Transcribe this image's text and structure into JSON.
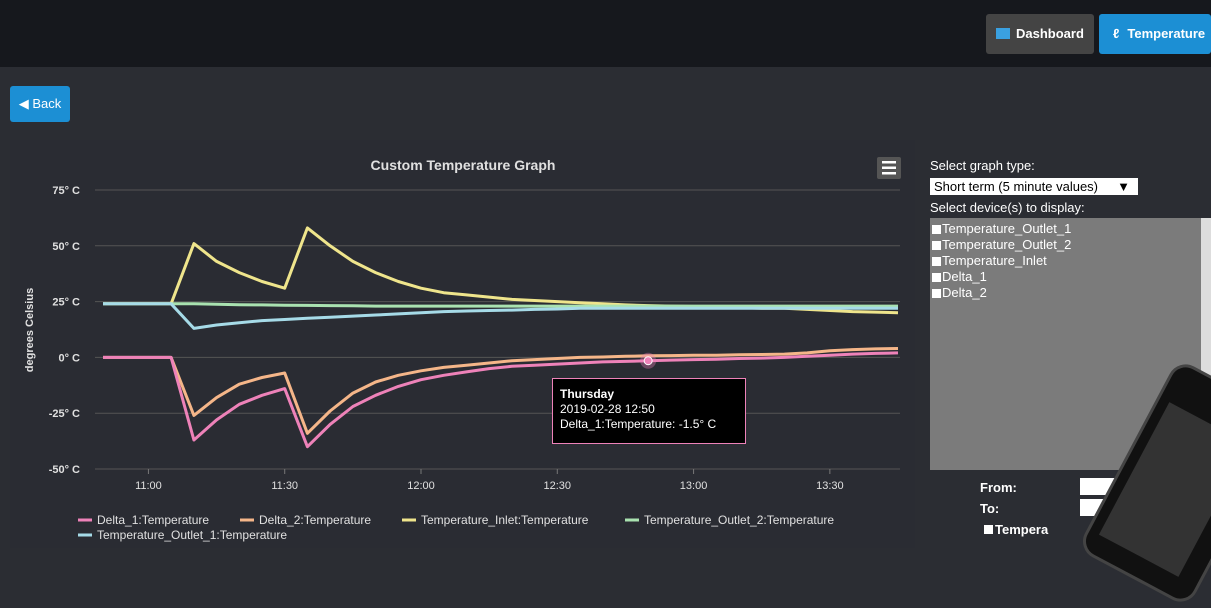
{
  "nav": {
    "buttons": [
      "Dashboard",
      "Temperature"
    ]
  },
  "back": "Back",
  "chart_data": {
    "type": "line",
    "title": "Custom Temperature Graph",
    "y_label": "degrees Celsius",
    "x": [
      "10:50",
      "10:55",
      "11:00",
      "11:05",
      "11:10",
      "11:15",
      "11:20",
      "11:25",
      "11:30",
      "11:35",
      "11:40",
      "11:45",
      "11:50",
      "11:55",
      "12:00",
      "12:05",
      "12:10",
      "12:15",
      "12:20",
      "12:25",
      "12:30",
      "12:35",
      "12:40",
      "12:45",
      "12:50",
      "12:55",
      "13:00",
      "13:05",
      "13:10",
      "13:15",
      "13:20",
      "13:25",
      "13:30",
      "13:35",
      "13:40",
      "13:45"
    ],
    "xlim": [
      "10:50",
      "13:45"
    ],
    "xticks": [
      "11:00",
      "11:30",
      "12:00",
      "12:30",
      "13:00",
      "13:30"
    ],
    "ylim": [
      -50,
      75
    ],
    "yticks": [
      {
        "value": -50,
        "label": "-50° C"
      },
      {
        "value": -25,
        "label": "-25° C"
      },
      {
        "value": 0,
        "label": "0° C"
      },
      {
        "value": 25,
        "label": "25° C"
      },
      {
        "value": 50,
        "label": "50° C"
      },
      {
        "value": 75,
        "label": "75° C"
      }
    ],
    "grid": true,
    "series": [
      {
        "name": "Delta_1:Temperature",
        "color": "#ee82b9",
        "values": [
          0,
          0,
          0,
          0,
          -37,
          -28,
          -21,
          -17,
          -14,
          -40,
          -30,
          -22,
          -17,
          -13,
          -10,
          -8,
          -6.5,
          -5,
          -4,
          -3.5,
          -3,
          -2.5,
          -2,
          -1.8,
          -1.5,
          -1.2,
          -1,
          -0.8,
          -0.5,
          -0.3,
          0,
          0.5,
          1,
          1.5,
          1.8,
          2
        ]
      },
      {
        "name": "Delta_2:Temperature",
        "color": "#f5b689",
        "values": [
          0,
          0,
          0,
          0,
          -26,
          -18,
          -12,
          -9,
          -7,
          -34,
          -24,
          -16,
          -11,
          -8,
          -6,
          -4.5,
          -3.5,
          -2.5,
          -1.5,
          -1,
          -0.5,
          0,
          0.2,
          0.5,
          0.7,
          0.8,
          1,
          1,
          1.2,
          1.3,
          1.5,
          2,
          3,
          3.5,
          3.8,
          4
        ]
      },
      {
        "name": "Temperature_Inlet:Temperature",
        "color": "#efe58c",
        "values": [
          24,
          24,
          24,
          24,
          51,
          43,
          38,
          34,
          31,
          58,
          50,
          43,
          38,
          34,
          31,
          29,
          28,
          27,
          26,
          25.5,
          25,
          24.5,
          24,
          23.5,
          23.2,
          23,
          22.8,
          22.5,
          22.3,
          22,
          22,
          21.5,
          21,
          20.5,
          20.3,
          20
        ]
      },
      {
        "name": "Temperature_Outlet_2:Temperature",
        "color": "#a9e2b0",
        "values": [
          24,
          24,
          24,
          24,
          24,
          23.8,
          23.6,
          23.5,
          23.4,
          23.3,
          23.2,
          23.1,
          23,
          23,
          23,
          23,
          23,
          23,
          23,
          23,
          23,
          23,
          23,
          23,
          23,
          23,
          23,
          23,
          23,
          23,
          23,
          23,
          23,
          23,
          23,
          23
        ]
      },
      {
        "name": "Temperature_Outlet_1:Temperature",
        "color": "#a6dbe8",
        "values": [
          24,
          24,
          24,
          24,
          13,
          14.5,
          15.5,
          16.5,
          17,
          17.5,
          18,
          18.5,
          19,
          19.5,
          20,
          20.5,
          20.8,
          21,
          21.2,
          21.5,
          21.7,
          22,
          22,
          22,
          22,
          22,
          22,
          22,
          22,
          22,
          22,
          22,
          22,
          22,
          22,
          22
        ]
      }
    ]
  },
  "tooltip": {
    "day": "Thursday",
    "time": "2019-02-28 12:50",
    "text": "Delta_1:Temperature: -1.5° C"
  },
  "panel": {
    "graph_type_label": "Select graph type:",
    "graph_type": "Short term (5 minute values)",
    "devices_label": "Select device(s) to display:",
    "devices": [
      "Temperature_Outlet_1",
      "Temperature_Outlet_2",
      "Temperature_Inlet",
      "Delta_1",
      "Delta_2"
    ],
    "from_label": "From:",
    "to_label": "To:",
    "checkbox": "Tempera"
  }
}
